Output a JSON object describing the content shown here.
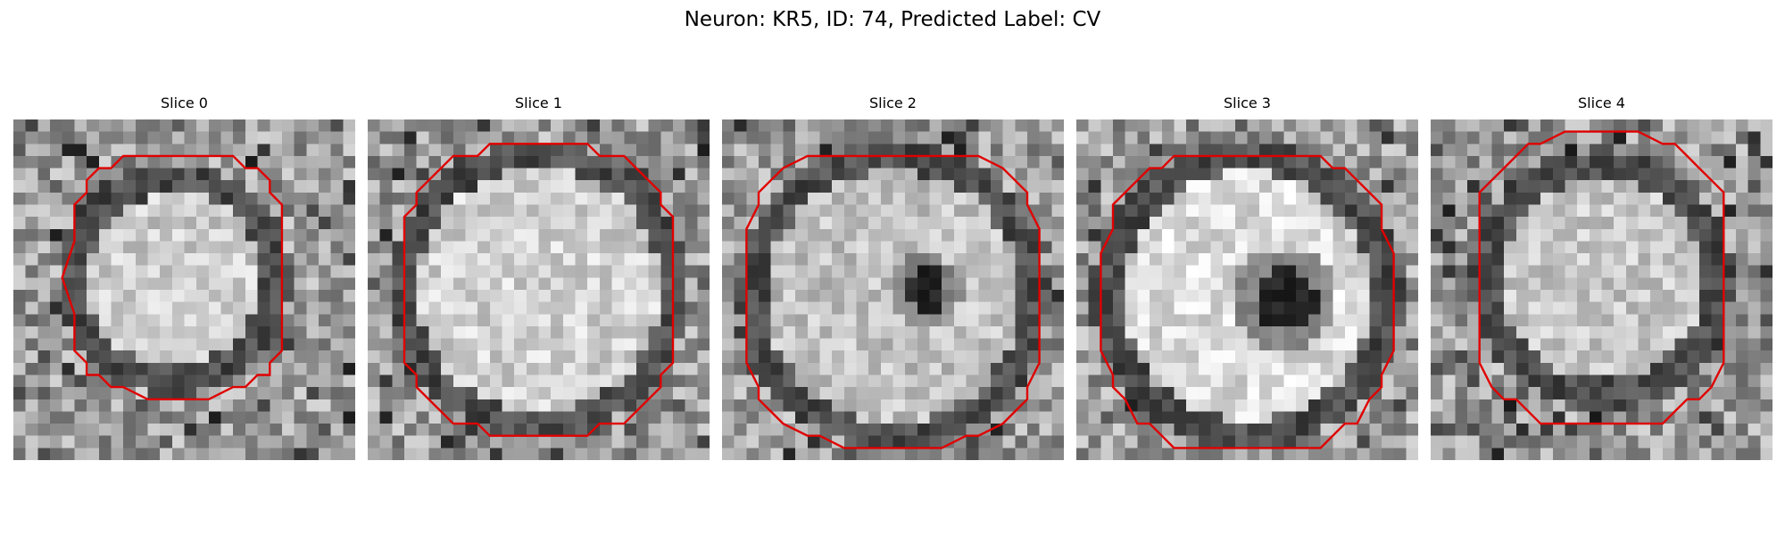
{
  "figure": {
    "title": "Neuron: KR5, ID: 74, Predicted Label: CV"
  },
  "slices": [
    {
      "title": "Slice 0"
    },
    {
      "title": "Slice 1"
    },
    {
      "title": "Slice 2"
    },
    {
      "title": "Slice 3"
    },
    {
      "title": "Slice 4"
    }
  ],
  "colors": {
    "contour": "#e00000"
  }
}
